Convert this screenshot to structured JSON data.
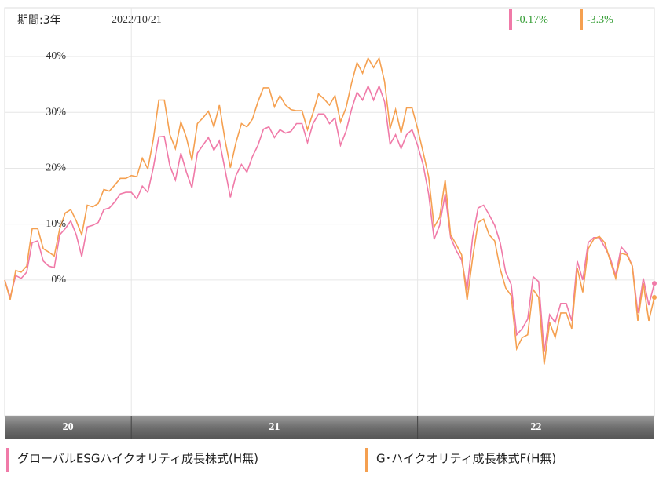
{
  "header": {
    "period": "期間:3年",
    "date": "2022/10/21"
  },
  "chart_data": {
    "type": "line",
    "ylim": [
      -24.3,
      48.7
    ],
    "yticks": [
      {
        "value": 0,
        "label": "0%"
      },
      {
        "value": 10,
        "label": "10%"
      },
      {
        "value": 20,
        "label": "20%"
      },
      {
        "value": 30,
        "label": "30%"
      },
      {
        "value": 40,
        "label": "40%"
      }
    ],
    "grid": true,
    "xlim": [
      0,
      118
    ],
    "xbands": [
      {
        "label": "20",
        "from": 0,
        "to": 23
      },
      {
        "label": "21",
        "from": 23,
        "to": 75
      },
      {
        "label": "22",
        "from": 75,
        "to": 118
      }
    ],
    "series": [
      {
        "name": "グローバルESGハイクオリティ成長株式(H無)",
        "color": "#f07aa8",
        "change": -0.17,
        "change_label": "-0.17%",
        "values": [
          0,
          -3.1,
          0.8,
          0.3,
          1.4,
          6.7,
          7,
          3.4,
          2.5,
          2.2,
          8.1,
          9.2,
          10.6,
          8.1,
          4.2,
          9.5,
          9.8,
          10.3,
          12.6,
          12.9,
          14,
          15.4,
          15.7,
          15.7,
          14.5,
          16.8,
          15.7,
          20.1,
          25.6,
          25.7,
          20.4,
          17.9,
          22.7,
          19.3,
          16.5,
          22.7,
          24.1,
          25.5,
          23.2,
          24.9,
          19.9,
          14.8,
          18.7,
          20.7,
          19.3,
          22.1,
          24.1,
          27,
          27.4,
          25.5,
          26.9,
          26.3,
          26.6,
          28,
          28,
          24.6,
          28,
          29.7,
          29.7,
          28,
          29,
          24.1,
          26.6,
          30.5,
          33.6,
          32.2,
          34.7,
          32.2,
          34.7,
          31.9,
          24.3,
          26,
          23.5,
          26,
          26.9,
          24.1,
          20.7,
          15.4,
          7.3,
          9.8,
          15.4,
          7.6,
          5.3,
          3.6,
          -1.7,
          7.6,
          12.9,
          13.4,
          11.7,
          9.8,
          6.7,
          1.4,
          -0.8,
          -9.8,
          -8.7,
          -7,
          0.6,
          -0.3,
          -12.9,
          -6.2,
          -7.6,
          -4.2,
          -4.2,
          -7.3,
          3.4,
          0,
          6.7,
          7.6,
          7.6,
          5.9,
          3.9,
          0.8,
          5.9,
          4.8,
          2.5,
          -5.9,
          0.3,
          -4.5,
          -0.6
        ]
      },
      {
        "name": "G･ハイクオリティ成長株式F(H無)",
        "color": "#f5a050",
        "change": -3.3,
        "change_label": "-3.3%",
        "values": [
          0,
          -3.5,
          1.7,
          1.4,
          2.5,
          9.2,
          9.2,
          5.6,
          5,
          4.3,
          9.2,
          12,
          12.6,
          10.6,
          8.1,
          13.4,
          13.1,
          13.7,
          16.2,
          15.9,
          17,
          18.2,
          18.2,
          18.7,
          18.5,
          21.8,
          19.9,
          25.2,
          32.2,
          32.2,
          26,
          23.5,
          28.3,
          25.5,
          21.4,
          28,
          29,
          30.2,
          27.4,
          31.3,
          25.2,
          20.1,
          24.6,
          28,
          27.4,
          28.8,
          31.9,
          34.4,
          34.4,
          31,
          33,
          31.3,
          30.5,
          30.3,
          30.3,
          26.9,
          29.9,
          33.3,
          32.4,
          31.3,
          33,
          28.3,
          30.8,
          35.2,
          38.9,
          37,
          39.7,
          38,
          39.7,
          35.5,
          27.1,
          30.5,
          26.3,
          30.8,
          30.8,
          27.1,
          22.9,
          18.5,
          9.5,
          11.2,
          17.9,
          8.1,
          6.4,
          4.5,
          -3.6,
          3.9,
          10.3,
          10.9,
          8.1,
          7,
          2,
          -1.4,
          -2.8,
          -12.3,
          -10.3,
          -9.8,
          -1.7,
          -3.1,
          -15.1,
          -7.6,
          -10.3,
          -5.9,
          -5.9,
          -8.7,
          2.2,
          -2.2,
          5.6,
          7.3,
          7.8,
          6.7,
          3.4,
          0.3,
          4.8,
          4.5,
          2.5,
          -7.3,
          -0.6,
          -7.3,
          -3.1
        ]
      }
    ]
  }
}
